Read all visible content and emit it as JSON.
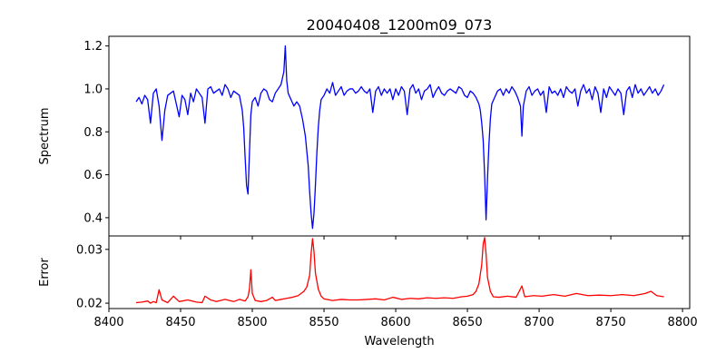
{
  "chart_data": [
    {
      "type": "line",
      "title": "20040408_1200m09_073",
      "xlabel": "",
      "ylabel": "Spectrum",
      "xlim": [
        8400,
        8805
      ],
      "ylim": [
        0.315,
        1.245
      ],
      "xticks": [
        8400,
        8450,
        8500,
        8550,
        8600,
        8650,
        8700,
        8750,
        8800
      ],
      "yticks": [
        0.4,
        0.6,
        0.8,
        1.0,
        1.2
      ],
      "ytick_labels": [
        "0.4",
        "0.6",
        "0.8",
        "1.0",
        "1.2"
      ],
      "series": [
        {
          "color": "#0000ff",
          "x": [
            8419,
            8421,
            8423,
            8425,
            8427,
            8429,
            8431,
            8433,
            8435,
            8437,
            8439,
            8441,
            8443,
            8445,
            8447,
            8449,
            8451,
            8453,
            8455,
            8457,
            8459,
            8461,
            8463,
            8465,
            8467,
            8469,
            8471,
            8473,
            8475,
            8477,
            8479,
            8481,
            8483,
            8485,
            8487,
            8489,
            8491,
            8493,
            8494,
            8495,
            8496,
            8497,
            8498,
            8499,
            8500,
            8502,
            8504,
            8506,
            8508,
            8510,
            8512,
            8514,
            8516,
            8518,
            8520,
            8522,
            8523,
            8524,
            8525,
            8527,
            8529,
            8531,
            8533,
            8535,
            8537,
            8539,
            8540,
            8541,
            8542,
            8543,
            8544,
            8545,
            8546,
            8547,
            8548,
            8550,
            8552,
            8554,
            8556,
            8558,
            8560,
            8562,
            8564,
            8566,
            8568,
            8570,
            8572,
            8574,
            8576,
            8578,
            8580,
            8582,
            8584,
            8586,
            8588,
            8590,
            8592,
            8594,
            8596,
            8598,
            8600,
            8602,
            8604,
            8606,
            8608,
            8610,
            8612,
            8614,
            8616,
            8618,
            8620,
            8622,
            8624,
            8626,
            8628,
            8630,
            8632,
            8634,
            8636,
            8638,
            8640,
            8642,
            8644,
            8646,
            8648,
            8650,
            8652,
            8654,
            8656,
            8658,
            8659,
            8660,
            8661,
            8662,
            8663,
            8664,
            8665,
            8666,
            8667,
            8669,
            8671,
            8673,
            8675,
            8677,
            8679,
            8681,
            8683,
            8685,
            8687,
            8688,
            8689,
            8691,
            8693,
            8695,
            8697,
            8699,
            8701,
            8703,
            8705,
            8707,
            8709,
            8711,
            8713,
            8715,
            8717,
            8719,
            8721,
            8723,
            8725,
            8727,
            8729,
            8731,
            8733,
            8735,
            8737,
            8739,
            8741,
            8743,
            8745,
            8747,
            8749,
            8751,
            8753,
            8755,
            8757,
            8759,
            8761,
            8763,
            8765,
            8767,
            8769,
            8771,
            8773,
            8775,
            8777,
            8779,
            8781,
            8783,
            8785,
            8787
          ],
          "y": [
            0.94,
            0.96,
            0.93,
            0.97,
            0.95,
            0.84,
            0.98,
            1.0,
            0.92,
            0.76,
            0.9,
            0.97,
            0.98,
            0.99,
            0.93,
            0.87,
            0.97,
            0.95,
            0.88,
            0.98,
            0.94,
            1.0,
            0.98,
            0.96,
            0.84,
            1.0,
            1.01,
            0.98,
            0.99,
            1.0,
            0.97,
            1.02,
            1.0,
            0.96,
            0.99,
            0.98,
            0.97,
            0.9,
            0.82,
            0.68,
            0.55,
            0.51,
            0.7,
            0.88,
            0.94,
            0.96,
            0.92,
            0.98,
            1.0,
            0.99,
            0.95,
            0.94,
            0.98,
            1.0,
            1.02,
            1.08,
            1.2,
            1.04,
            0.98,
            0.95,
            0.92,
            0.94,
            0.92,
            0.86,
            0.78,
            0.64,
            0.52,
            0.42,
            0.35,
            0.42,
            0.55,
            0.7,
            0.82,
            0.9,
            0.95,
            0.97,
            1.0,
            0.98,
            1.03,
            0.97,
            0.99,
            1.01,
            0.97,
            0.99,
            1.0,
            1.0,
            0.98,
            0.99,
            1.01,
            0.99,
            0.98,
            1.0,
            0.89,
            0.99,
            1.01,
            0.97,
            1.0,
            0.98,
            1.0,
            0.95,
            1.0,
            0.97,
            1.01,
            0.99,
            0.88,
            1.0,
            1.02,
            0.98,
            1.0,
            0.95,
            0.99,
            1.0,
            1.02,
            0.96,
            0.99,
            1.01,
            0.98,
            0.97,
            0.99,
            1.0,
            0.99,
            0.98,
            1.01,
            1.0,
            0.97,
            0.96,
            0.99,
            0.98,
            0.96,
            0.93,
            0.9,
            0.84,
            0.76,
            0.6,
            0.39,
            0.58,
            0.74,
            0.86,
            0.93,
            0.96,
            0.99,
            1.0,
            0.97,
            1.0,
            0.98,
            1.01,
            0.99,
            0.96,
            0.92,
            0.78,
            0.92,
            0.99,
            1.01,
            0.97,
            0.99,
            1.0,
            0.97,
            0.99,
            0.89,
            1.01,
            0.98,
            0.99,
            0.97,
            1.0,
            0.96,
            1.01,
            0.99,
            0.98,
            1.0,
            0.92,
            0.99,
            1.02,
            0.98,
            1.0,
            0.95,
            1.01,
            0.98,
            0.89,
            1.0,
            0.96,
            1.01,
            0.99,
            0.97,
            1.0,
            0.98,
            0.88,
            0.99,
            1.01,
            0.96,
            1.02,
            0.98,
            1.0,
            0.97,
            0.99,
            1.01,
            0.98,
            1.0,
            0.97,
            0.99,
            1.02
          ]
        }
      ]
    },
    {
      "type": "line",
      "title": "",
      "xlabel": "Wavelength",
      "ylabel": "Error",
      "xlim": [
        8400,
        8805
      ],
      "ylim": [
        0.019,
        0.0325
      ],
      "xticks": [
        8400,
        8450,
        8500,
        8550,
        8600,
        8650,
        8700,
        8750,
        8800
      ],
      "xtick_labels": [
        "8400",
        "8450",
        "8500",
        "8550",
        "8600",
        "8650",
        "8700",
        "8750",
        "8800"
      ],
      "yticks": [
        0.02,
        0.03
      ],
      "ytick_labels": [
        "0.02",
        "0.03"
      ],
      "series": [
        {
          "color": "#ff0000",
          "x": [
            8419,
            8423,
            8427,
            8429,
            8431,
            8433,
            8435,
            8437,
            8441,
            8445,
            8449,
            8455,
            8461,
            8465,
            8467,
            8471,
            8475,
            8481,
            8487,
            8491,
            8495,
            8497,
            8498,
            8499,
            8500,
            8502,
            8506,
            8510,
            8514,
            8516,
            8520,
            8524,
            8528,
            8532,
            8536,
            8538,
            8540,
            8541,
            8542,
            8543,
            8544,
            8546,
            8548,
            8550,
            8556,
            8562,
            8568,
            8574,
            8580,
            8586,
            8592,
            8598,
            8604,
            8610,
            8616,
            8622,
            8628,
            8634,
            8640,
            8646,
            8650,
            8654,
            8656,
            8658,
            8660,
            8661,
            8662,
            8663,
            8664,
            8666,
            8668,
            8672,
            8678,
            8684,
            8688,
            8690,
            8696,
            8702,
            8710,
            8718,
            8726,
            8734,
            8742,
            8750,
            8758,
            8766,
            8774,
            8778,
            8782,
            8787
          ],
          "y": [
            0.0201,
            0.0202,
            0.0204,
            0.02,
            0.0203,
            0.0201,
            0.0225,
            0.0206,
            0.0201,
            0.0213,
            0.0203,
            0.0206,
            0.0202,
            0.0201,
            0.0213,
            0.0206,
            0.0203,
            0.0207,
            0.0203,
            0.0207,
            0.0204,
            0.0212,
            0.0226,
            0.0262,
            0.0218,
            0.0205,
            0.0203,
            0.0205,
            0.0211,
            0.0205,
            0.0207,
            0.0209,
            0.0211,
            0.0214,
            0.0222,
            0.023,
            0.0252,
            0.0292,
            0.032,
            0.0296,
            0.0256,
            0.0226,
            0.0213,
            0.0208,
            0.0205,
            0.0207,
            0.0206,
            0.0206,
            0.0207,
            0.0208,
            0.0206,
            0.0211,
            0.0207,
            0.0209,
            0.0208,
            0.021,
            0.0209,
            0.021,
            0.0209,
            0.0212,
            0.0213,
            0.0216,
            0.0222,
            0.0236,
            0.0272,
            0.031,
            0.0322,
            0.0292,
            0.0248,
            0.0222,
            0.0212,
            0.0211,
            0.0213,
            0.0211,
            0.0232,
            0.0212,
            0.0214,
            0.0213,
            0.0216,
            0.0213,
            0.0218,
            0.0214,
            0.0215,
            0.0214,
            0.0216,
            0.0214,
            0.0218,
            0.0222,
            0.0214,
            0.0212
          ]
        }
      ]
    }
  ]
}
